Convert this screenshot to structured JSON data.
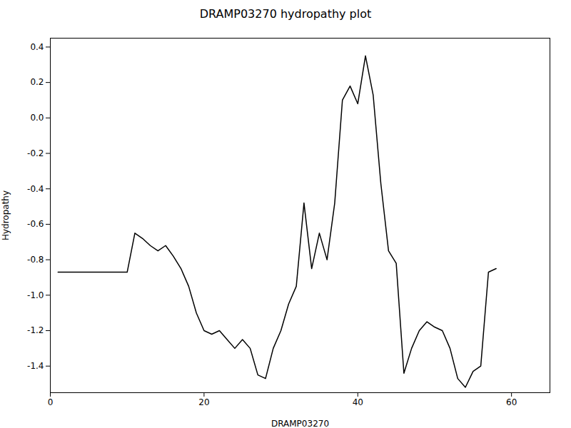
{
  "chart_data": {
    "type": "line",
    "title": "DRAMP03270 hydropathy plot",
    "xlabel": "DRAMP03270",
    "ylabel": "Hydropathy",
    "xlim": [
      0,
      65
    ],
    "ylim": [
      -1.55,
      0.45
    ],
    "xticks": [
      0,
      20,
      40,
      60
    ],
    "yticks": [
      -1.4,
      -1.2,
      {
        "value": -1.0,
        "label": "-1.0"
      },
      -0.8,
      -0.6,
      -0.4,
      -0.2,
      {
        "value": 0.0,
        "label": "0.0"
      },
      0.2,
      0.4
    ],
    "color": "black",
    "x": [
      1,
      2,
      3,
      4,
      5,
      6,
      7,
      8,
      9,
      10,
      11,
      12,
      13,
      14,
      15,
      16,
      17,
      18,
      19,
      20,
      21,
      22,
      23,
      24,
      25,
      26,
      27,
      28,
      29,
      30,
      31,
      32,
      33,
      34,
      35,
      36,
      37,
      38,
      39,
      40,
      41,
      42,
      43,
      44,
      45,
      46,
      47,
      48,
      49,
      50,
      51,
      52,
      53,
      54,
      55,
      56,
      57,
      58
    ],
    "values": [
      -0.87,
      -0.87,
      -0.87,
      -0.87,
      -0.87,
      -0.87,
      -0.87,
      -0.87,
      -0.87,
      -0.87,
      -0.65,
      -0.68,
      -0.72,
      -0.75,
      -0.72,
      -0.78,
      -0.85,
      -0.95,
      -1.1,
      -1.2,
      -1.22,
      -1.2,
      -1.25,
      -1.3,
      -1.25,
      -1.3,
      -1.45,
      -1.47,
      -1.3,
      -1.2,
      -1.05,
      -0.95,
      -0.48,
      -0.85,
      -0.65,
      -0.8,
      -0.48,
      0.1,
      0.18,
      0.08,
      0.35,
      0.13,
      -0.37,
      -0.75,
      -0.82,
      -1.44,
      -1.3,
      -1.2,
      -1.15,
      -1.18,
      -1.2,
      -1.3,
      -1.47,
      -1.52,
      -1.43,
      -1.4,
      -0.87,
      -0.85
    ]
  }
}
